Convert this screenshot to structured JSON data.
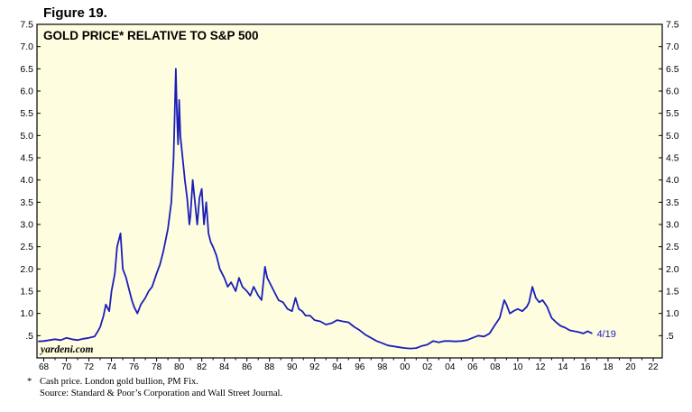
{
  "figure_label": "Figure 19.",
  "footnote": {
    "star": "*",
    "line1": "Cash price. London gold bullion, PM Fix.",
    "line2": "Source: Standard & Poor’s Corporation and Wall Street Journal."
  },
  "colors": {
    "plot_bg": "#fffde0",
    "line": "#1a1fb8",
    "frame": "#000000"
  },
  "chart_data": {
    "type": "line",
    "title": "GOLD PRICE* RELATIVE TO S&P 500",
    "watermark": "yardeni.com",
    "end_label": "4/19",
    "xlim": [
      1967.4,
      2022.8
    ],
    "ylim": [
      0.0,
      7.5
    ],
    "x_ticks": [
      1968,
      1970,
      1972,
      1974,
      1976,
      1978,
      1980,
      1982,
      1984,
      1986,
      1988,
      1990,
      1992,
      1994,
      1996,
      1998,
      2000,
      2002,
      2004,
      2006,
      2008,
      2010,
      2012,
      2014,
      2016,
      2018,
      2020,
      2022
    ],
    "x_tick_labels": [
      "68",
      "70",
      "72",
      "74",
      "76",
      "78",
      "80",
      "82",
      "84",
      "86",
      "88",
      "90",
      "92",
      "94",
      "96",
      "98",
      "00",
      "02",
      "04",
      "06",
      "08",
      "10",
      "12",
      "14",
      "16",
      "18",
      "20",
      "22"
    ],
    "y_ticks": [
      0.5,
      1.0,
      1.5,
      2.0,
      2.5,
      3.0,
      3.5,
      4.0,
      4.5,
      5.0,
      5.5,
      6.0,
      6.5,
      7.0,
      7.5
    ],
    "y_tick_labels": [
      ".5",
      "1.0",
      "1.5",
      "2.0",
      "2.5",
      "3.0",
      "3.5",
      "4.0",
      "4.5",
      "5.0",
      "5.5",
      "6.0",
      "6.5",
      "7.0",
      "7.5"
    ],
    "series": [
      {
        "name": "Gold price relative to S&P 500",
        "x": [
          1967.5,
          1968.0,
          1968.5,
          1969.0,
          1969.5,
          1970.0,
          1970.5,
          1971.0,
          1971.5,
          1972.0,
          1972.5,
          1972.8,
          1973.0,
          1973.3,
          1973.5,
          1973.8,
          1974.0,
          1974.3,
          1974.5,
          1974.8,
          1975.0,
          1975.3,
          1975.5,
          1975.8,
          1976.0,
          1976.3,
          1976.6,
          1977.0,
          1977.3,
          1977.6,
          1978.0,
          1978.3,
          1978.6,
          1979.0,
          1979.3,
          1979.5,
          1979.7,
          1979.8,
          1979.9,
          1980.0,
          1980.1,
          1980.3,
          1980.5,
          1980.7,
          1980.9,
          1981.0,
          1981.2,
          1981.4,
          1981.6,
          1981.8,
          1982.0,
          1982.2,
          1982.4,
          1982.6,
          1982.8,
          1983.0,
          1983.3,
          1983.6,
          1984.0,
          1984.3,
          1984.6,
          1985.0,
          1985.3,
          1985.6,
          1986.0,
          1986.3,
          1986.6,
          1987.0,
          1987.3,
          1987.6,
          1987.8,
          1988.0,
          1988.4,
          1988.8,
          1989.2,
          1989.6,
          1990.0,
          1990.3,
          1990.6,
          1990.9,
          1991.2,
          1991.6,
          1992.0,
          1992.5,
          1993.0,
          1993.5,
          1994.0,
          1994.5,
          1995.0,
          1995.5,
          1996.0,
          1996.5,
          1997.0,
          1997.5,
          1998.0,
          1998.5,
          1999.0,
          1999.5,
          2000.0,
          2000.5,
          2001.0,
          2001.5,
          2002.0,
          2002.5,
          2003.0,
          2003.5,
          2004.0,
          2004.5,
          2005.0,
          2005.5,
          2006.0,
          2006.5,
          2007.0,
          2007.5,
          2008.0,
          2008.4,
          2008.8,
          2009.0,
          2009.3,
          2009.6,
          2010.0,
          2010.4,
          2010.8,
          2011.0,
          2011.3,
          2011.6,
          2011.9,
          2012.2,
          2012.6,
          2013.0,
          2013.4,
          2013.8,
          2014.2,
          2014.6,
          2015.0,
          2015.4,
          2015.8,
          2016.2,
          2016.6
        ],
        "values": [
          0.37,
          0.38,
          0.4,
          0.42,
          0.4,
          0.45,
          0.42,
          0.4,
          0.43,
          0.45,
          0.48,
          0.6,
          0.7,
          0.95,
          1.2,
          1.05,
          1.5,
          1.9,
          2.5,
          2.8,
          2.0,
          1.8,
          1.6,
          1.3,
          1.15,
          1.0,
          1.2,
          1.35,
          1.5,
          1.6,
          1.9,
          2.1,
          2.4,
          2.9,
          3.5,
          4.5,
          6.5,
          5.5,
          4.8,
          5.8,
          5.0,
          4.5,
          4.0,
          3.6,
          3.0,
          3.2,
          4.0,
          3.5,
          3.0,
          3.6,
          3.8,
          3.0,
          3.5,
          2.8,
          2.6,
          2.5,
          2.3,
          2.0,
          1.8,
          1.6,
          1.7,
          1.5,
          1.8,
          1.6,
          1.5,
          1.4,
          1.6,
          1.4,
          1.3,
          2.05,
          1.8,
          1.7,
          1.5,
          1.3,
          1.25,
          1.1,
          1.05,
          1.35,
          1.1,
          1.05,
          0.95,
          0.95,
          0.85,
          0.82,
          0.75,
          0.78,
          0.85,
          0.82,
          0.8,
          0.7,
          0.62,
          0.52,
          0.45,
          0.38,
          0.33,
          0.28,
          0.26,
          0.24,
          0.22,
          0.21,
          0.22,
          0.27,
          0.3,
          0.38,
          0.35,
          0.38,
          0.38,
          0.37,
          0.38,
          0.4,
          0.45,
          0.5,
          0.48,
          0.55,
          0.75,
          0.9,
          1.3,
          1.2,
          1.0,
          1.05,
          1.1,
          1.05,
          1.15,
          1.25,
          1.6,
          1.35,
          1.25,
          1.3,
          1.15,
          0.9,
          0.8,
          0.72,
          0.68,
          0.62,
          0.6,
          0.58,
          0.55,
          0.6,
          0.55
        ]
      }
    ]
  }
}
